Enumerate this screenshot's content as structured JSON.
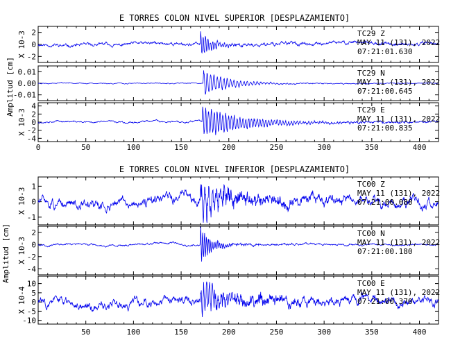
{
  "chart_data": [
    {
      "type": "line",
      "title": "E TORRES COLON NIVEL SUPERIOR [DESPLAZAMIENTO]",
      "ylabel": "Amplitud [cm]",
      "xlim": [
        0,
        420
      ],
      "x_ticks": [
        "0",
        "50",
        "100",
        "150",
        "200",
        "250",
        "300",
        "350",
        "400"
      ],
      "panels": [
        {
          "component": "Z",
          "station_label": "TC29 Z",
          "date_label": "MAY 11 (131), 2022",
          "time_label": "07:21:01.630",
          "scale_label": "X 10-3",
          "y_ticks": [
            "2",
            "0",
            "-2"
          ],
          "ylim": [
            -3,
            3
          ],
          "noise": 0.5,
          "burst_start": 170,
          "burst_peak": 2.5,
          "burst_decay": 12,
          "period": 2.5,
          "coda": 0.25,
          "seed": 11
        },
        {
          "component": "N",
          "station_label": "TC29 N",
          "date_label": "MAY 11 (131), 2022",
          "time_label": "07:21:00.645",
          "scale_label": "",
          "y_ticks": [
            "0.01",
            "0.00",
            "-0.01"
          ],
          "ylim": [
            -0.015,
            0.015
          ],
          "noise": 0.0008,
          "burst_start": 173,
          "burst_peak": 0.013,
          "burst_decay": 25,
          "period": 3.5,
          "coda": 0.0005,
          "seed": 23
        },
        {
          "component": "E",
          "station_label": "TC29 E",
          "date_label": "MAY 11 (131), 2022",
          "time_label": "07:21:00.835",
          "scale_label": "X 10-3",
          "y_ticks": [
            "4",
            "2",
            "0",
            "-2",
            "-4"
          ],
          "ylim": [
            -4.8,
            4.8
          ],
          "noise": 0.4,
          "burst_start": 172,
          "burst_peak": 4.2,
          "burst_decay": 45,
          "period": 3.0,
          "coda": 0.3,
          "seed": 37
        }
      ]
    },
    {
      "type": "line",
      "title": "E TORRES COLON NIVEL INFERIOR [DESPLAZAMIENTO]",
      "ylabel": "Amplitud [cm]",
      "xlim": [
        0,
        420
      ],
      "x_ticks": [
        "50",
        "100",
        "150",
        "200",
        "250",
        "300",
        "350",
        "400"
      ],
      "panels": [
        {
          "component": "Z",
          "station_label": "TC00 Z",
          "date_label": "MAY 11 (131), 2022",
          "time_label": "07:21:00.080",
          "scale_label": "X 10-3",
          "y_ticks": [
            "1",
            "0",
            "-1"
          ],
          "ylim": [
            -1.5,
            1.6
          ],
          "noise": 0.6,
          "burst_start": 170,
          "burst_peak": 1.4,
          "burst_decay": 20,
          "period": 4,
          "coda": 0.5,
          "seed": 51
        },
        {
          "component": "N",
          "station_label": "TC00 N",
          "date_label": "MAY 11 (131), 2022",
          "time_label": "07:21:00.180",
          "scale_label": "X 10-3",
          "y_ticks": [
            "2",
            "0",
            "-2",
            "-4"
          ],
          "ylim": [
            -5,
            3
          ],
          "noise": 0.3,
          "burst_start": 170,
          "burst_peak": 3.8,
          "burst_decay": 10,
          "period": 2,
          "coda": 0.4,
          "seed": 67
        },
        {
          "component": "E",
          "station_label": "TC00 E",
          "date_label": "MAY 11 (131), 2022",
          "time_label": "07:21:00.370",
          "scale_label": "X 10-4",
          "y_ticks": [
            "10",
            "5",
            "0",
            "-5",
            "-10"
          ],
          "ylim": [
            -12,
            14
          ],
          "noise": 4.5,
          "burst_start": 170,
          "burst_peak": 11,
          "burst_decay": 20,
          "period": 3,
          "coda": 4,
          "seed": 83
        }
      ]
    }
  ]
}
